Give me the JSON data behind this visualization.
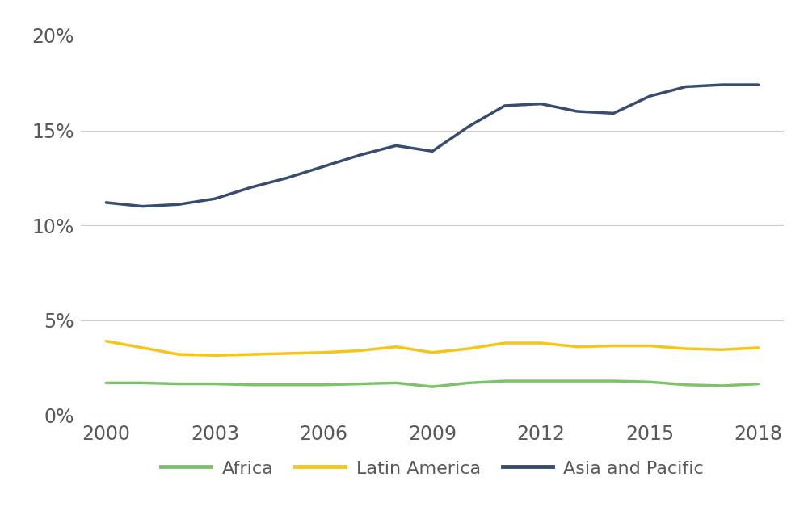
{
  "years": [
    2000,
    2001,
    2002,
    2003,
    2004,
    2005,
    2006,
    2007,
    2008,
    2009,
    2010,
    2011,
    2012,
    2013,
    2014,
    2015,
    2016,
    2017,
    2018
  ],
  "africa": [
    1.7,
    1.7,
    1.65,
    1.65,
    1.6,
    1.6,
    1.6,
    1.65,
    1.7,
    1.5,
    1.7,
    1.8,
    1.8,
    1.8,
    1.8,
    1.75,
    1.6,
    1.55,
    1.65
  ],
  "latin_america": [
    3.9,
    3.55,
    3.2,
    3.15,
    3.2,
    3.25,
    3.3,
    3.4,
    3.6,
    3.3,
    3.5,
    3.8,
    3.8,
    3.6,
    3.65,
    3.65,
    3.5,
    3.45,
    3.55
  ],
  "asia_pacific": [
    11.2,
    11.0,
    11.1,
    11.4,
    12.0,
    12.5,
    13.1,
    13.7,
    14.2,
    13.9,
    15.2,
    16.3,
    16.4,
    16.0,
    15.9,
    16.8,
    17.3,
    17.4,
    17.4
  ],
  "africa_color": "#7dc36b",
  "latin_america_color": "#f5c518",
  "asia_pacific_color": "#374c6e",
  "line_width": 2.5,
  "ylim_bottom": 0,
  "ylim_top": 20.5,
  "yticks": [
    0,
    5,
    10,
    15,
    20
  ],
  "ytick_labels": [
    "0%",
    "5%",
    "10%",
    "15%",
    "20%"
  ],
  "xticks": [
    2000,
    2003,
    2006,
    2009,
    2012,
    2015,
    2018
  ],
  "legend_labels": [
    "Africa",
    "Latin America",
    "Asia and Pacific"
  ],
  "background_color": "#ffffff",
  "grid_color": "#cccccc",
  "font_color": "#595959",
  "font_size_ticks": 17,
  "font_size_legend": 16,
  "xlim_left": 1999.3,
  "xlim_right": 2018.7
}
